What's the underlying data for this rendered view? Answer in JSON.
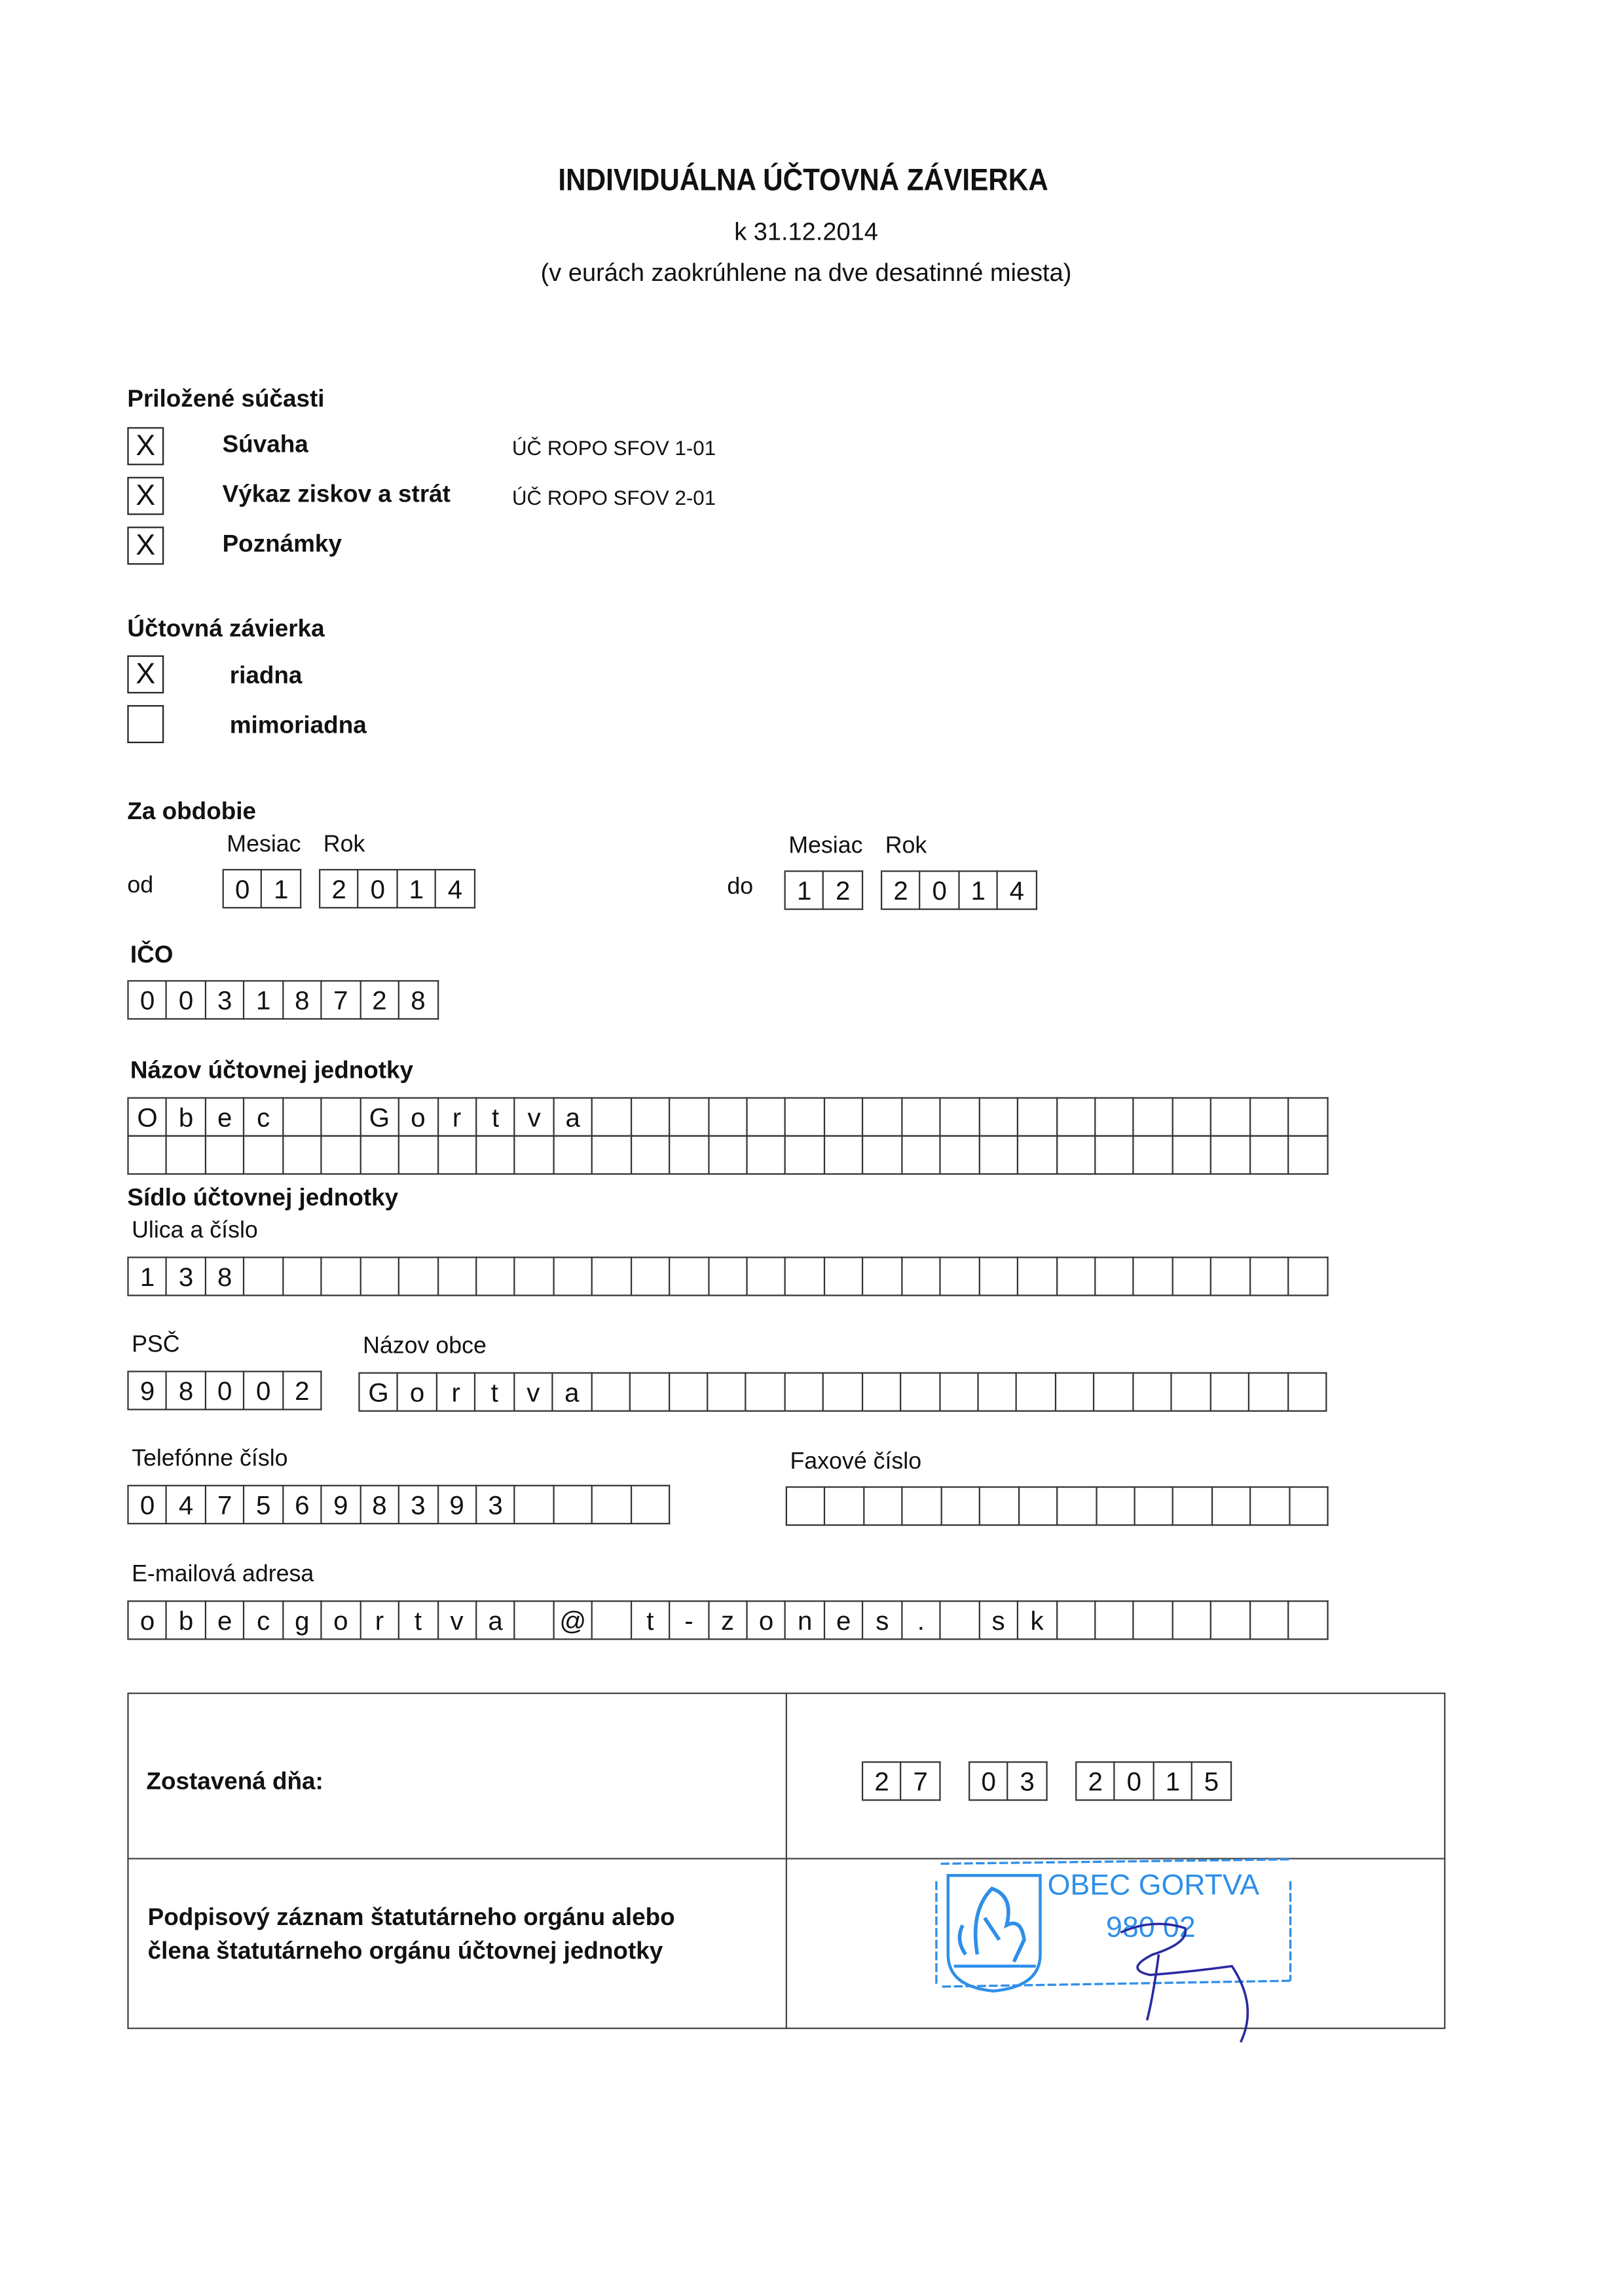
{
  "header": {
    "title": "INDIVIDUÁLNA ÚČTOVNÁ ZÁVIERKA",
    "date": "k 31.12.2014",
    "note": "(v eurách zaokrúhlene na dve desatinné miesta)"
  },
  "attachments": {
    "heading": "Priložené súčasti",
    "items": [
      {
        "mark": "X",
        "label": "Súvaha",
        "code": "ÚČ ROPO SFOV 1-01"
      },
      {
        "mark": "X",
        "label": "Výkaz ziskov a strát",
        "code": "ÚČ ROPO SFOV 2-01"
      },
      {
        "mark": "X",
        "label": "Poznámky",
        "code": ""
      }
    ]
  },
  "statement_type": {
    "heading": "Účtovná závierka",
    "items": [
      {
        "mark": "X",
        "label": "riadna"
      },
      {
        "mark": "",
        "label": "mimoriadna"
      }
    ]
  },
  "period": {
    "heading": "Za obdobie",
    "month_label": "Mesiac",
    "year_label": "Rok",
    "from_label": "od",
    "to_label": "do",
    "from_month": "01",
    "from_year": "2014",
    "to_month": "12",
    "to_year": "2014"
  },
  "ico": {
    "label": "IČO",
    "value": "00318728"
  },
  "name": {
    "label": "Názov účtovnej jednotky",
    "row1": "Obec  Gortva",
    "row2": ""
  },
  "address": {
    "heading": "Sídlo účtovnej jednotky",
    "street_label": "Ulica a číslo",
    "street": "138",
    "psc_label": "PSČ",
    "psc": "98002",
    "city_label": "Názov obce",
    "city": "Gortva"
  },
  "contact": {
    "phone_label": "Telefónne číslo",
    "phone": "0475698393",
    "fax_label": "Faxové číslo",
    "fax": "",
    "email_label": "E-mailová adresa",
    "email": "obecgortva @ t-zones. sk"
  },
  "footer": {
    "compiled_label": "Zostavená dňa:",
    "compiled_day": "27",
    "compiled_month": "03",
    "compiled_year": "2015",
    "signature_label_1": "Podpisový záznam štatutárneho orgánu alebo",
    "signature_label_2": "člena štatutárneho orgánu účtovnej jednotky",
    "stamp_text": "OBEC GORTVA",
    "stamp_postcode": "980 02",
    "stamp_color": "#2f8fe8",
    "signature_color": "#2a2aa0"
  }
}
